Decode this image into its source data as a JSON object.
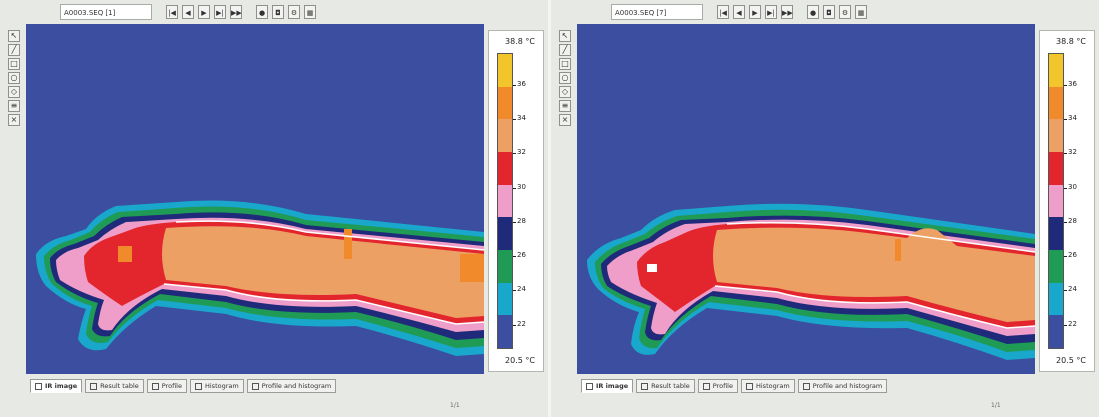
{
  "panels": [
    {
      "id": "left",
      "file_field": "A0003.SEQ [1]",
      "colorbar": {
        "max_label": "38.8 °C",
        "min_label": "20.5 °C",
        "ticks": [
          "36",
          "34",
          "32",
          "30",
          "28",
          "26",
          "24",
          "22"
        ]
      },
      "tabs": [
        "IR image",
        "Result table",
        "Profile",
        "Histogram",
        "Profile and histogram"
      ],
      "status": "1/1"
    },
    {
      "id": "right",
      "file_field": "A0003.SEQ [7]",
      "colorbar": {
        "max_label": "38.8 °C",
        "min_label": "20.5 °C",
        "ticks": [
          "36",
          "34",
          "32",
          "30",
          "28",
          "26",
          "24",
          "22"
        ]
      },
      "tabs": [
        "IR image",
        "Result table",
        "Profile",
        "Histogram",
        "Profile and histogram"
      ],
      "status": "1/1"
    }
  ],
  "colors": {
    "background": "#3c4ea0",
    "palette": [
      "#3c4ea0",
      "#19a7cc",
      "#1f9b55",
      "#1f2a7a",
      "#ee9ec8",
      "#e3262d",
      "#eda063",
      "#f08a2a",
      "#f2c52a"
    ]
  },
  "icons": {
    "toolbar": [
      "first-frame-icon",
      "prev-frame-icon",
      "play-icon",
      "next-frame-icon",
      "last-frame-icon",
      "record-icon",
      "settings-icon"
    ],
    "vertical_tools": [
      "arrow-tool-icon",
      "line-tool-icon",
      "box-tool-icon",
      "circle-tool-icon",
      "polygon-tool-icon",
      "isotherm-icon",
      "delete-tool-icon"
    ]
  }
}
